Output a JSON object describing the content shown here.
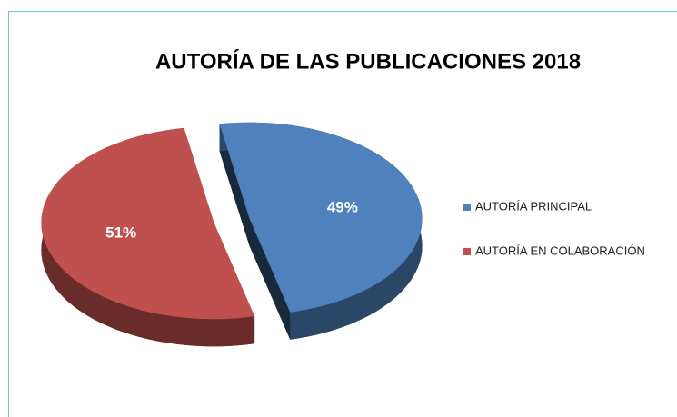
{
  "chart_data": {
    "type": "pie",
    "title": "AUTORÍA DE LAS PUBLICACIONES 2018",
    "categories": [
      "AUTORÍA PRINCIPAL",
      "AUTORÍA EN COLABORACIÓN"
    ],
    "values": [
      49,
      51
    ],
    "value_labels": [
      "49%",
      "51%"
    ],
    "colors": [
      "#4f81bd",
      "#c0504d"
    ],
    "legend": "right"
  }
}
